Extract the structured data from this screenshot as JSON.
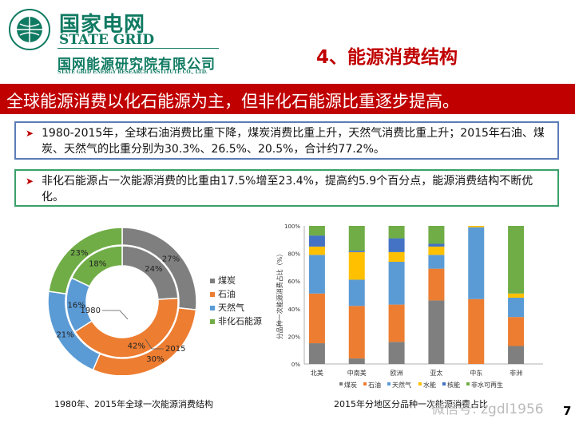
{
  "logo": {
    "cn": "国家电网",
    "en": "STATE GRID",
    "institute_cn": "国网能源研究院有限公司",
    "institute_en": "STATE GRID ENERGY RESEARCH INSTITUTE CO., LTD."
  },
  "title": "4、能源消费结构",
  "banner": "全球能源消费以化石能源为主，但非化石能源比重逐步提高。",
  "bullets": [
    "1980-2015年，全球石油消费比重下降，煤炭消费比重上升，天然气消费比重上升；2015年石油、煤炭、天然气的比重分别为30.3%、26.5%、20.5%，合计约77.2%。",
    "非化石能源占一次能源消费的比重由17.5%增至23.4%，提高约5.9个百分点，能源消费结构不断优化。"
  ],
  "colors": {
    "coal": "#7f7f7f",
    "oil": "#ed7d31",
    "gas": "#5b9bd5",
    "hydro": "#ffc000",
    "nuclear": "#4472c4",
    "renewable": "#70ad47",
    "accent": "#c00000"
  },
  "chart_data": [
    {
      "type": "pie",
      "variant": "double-donut",
      "caption": "1980年、2015年全球一次能源消费结构",
      "categories": [
        "煤炭",
        "石油",
        "天然气",
        "非化石能源"
      ],
      "series": [
        {
          "name": "1980",
          "ring": "inner",
          "values": [
            24,
            42,
            16,
            18
          ],
          "labels": [
            "24%",
            "42%",
            "16%",
            "18%"
          ]
        },
        {
          "name": "2015",
          "ring": "outer",
          "values": [
            27,
            30,
            21,
            23
          ],
          "labels": [
            "27%",
            "30%",
            "21%",
            "23%"
          ]
        }
      ],
      "legend": "right"
    },
    {
      "type": "bar",
      "stacked": true,
      "caption": "2015年分地区分品种一次能源消费占比",
      "ylabel": "分品种一次能源消费占比（%）",
      "ylim": [
        0,
        100
      ],
      "yticks": [
        "0%",
        "20%",
        "40%",
        "60%",
        "80%",
        "100%"
      ],
      "categories": [
        "北美",
        "中南美",
        "欧洲",
        "亚太",
        "中东",
        "非洲"
      ],
      "series": [
        {
          "name": "煤炭",
          "values": [
            15,
            4,
            16,
            46,
            0,
            13
          ]
        },
        {
          "name": "石油",
          "values": [
            36,
            38,
            27,
            23,
            47,
            21
          ]
        },
        {
          "name": "天然气",
          "values": [
            28,
            19,
            31,
            10,
            52,
            14
          ]
        },
        {
          "name": "水能",
          "values": [
            6,
            20,
            7,
            6,
            1,
            3
          ]
        },
        {
          "name": "核能",
          "values": [
            8,
            1,
            10,
            2,
            0,
            0
          ]
        },
        {
          "name": "非水可再生",
          "values": [
            7,
            18,
            9,
            13,
            0,
            49
          ]
        }
      ],
      "legend": "bottom"
    }
  ],
  "watermark": "微信号: zgdl1956",
  "page_number": "7"
}
